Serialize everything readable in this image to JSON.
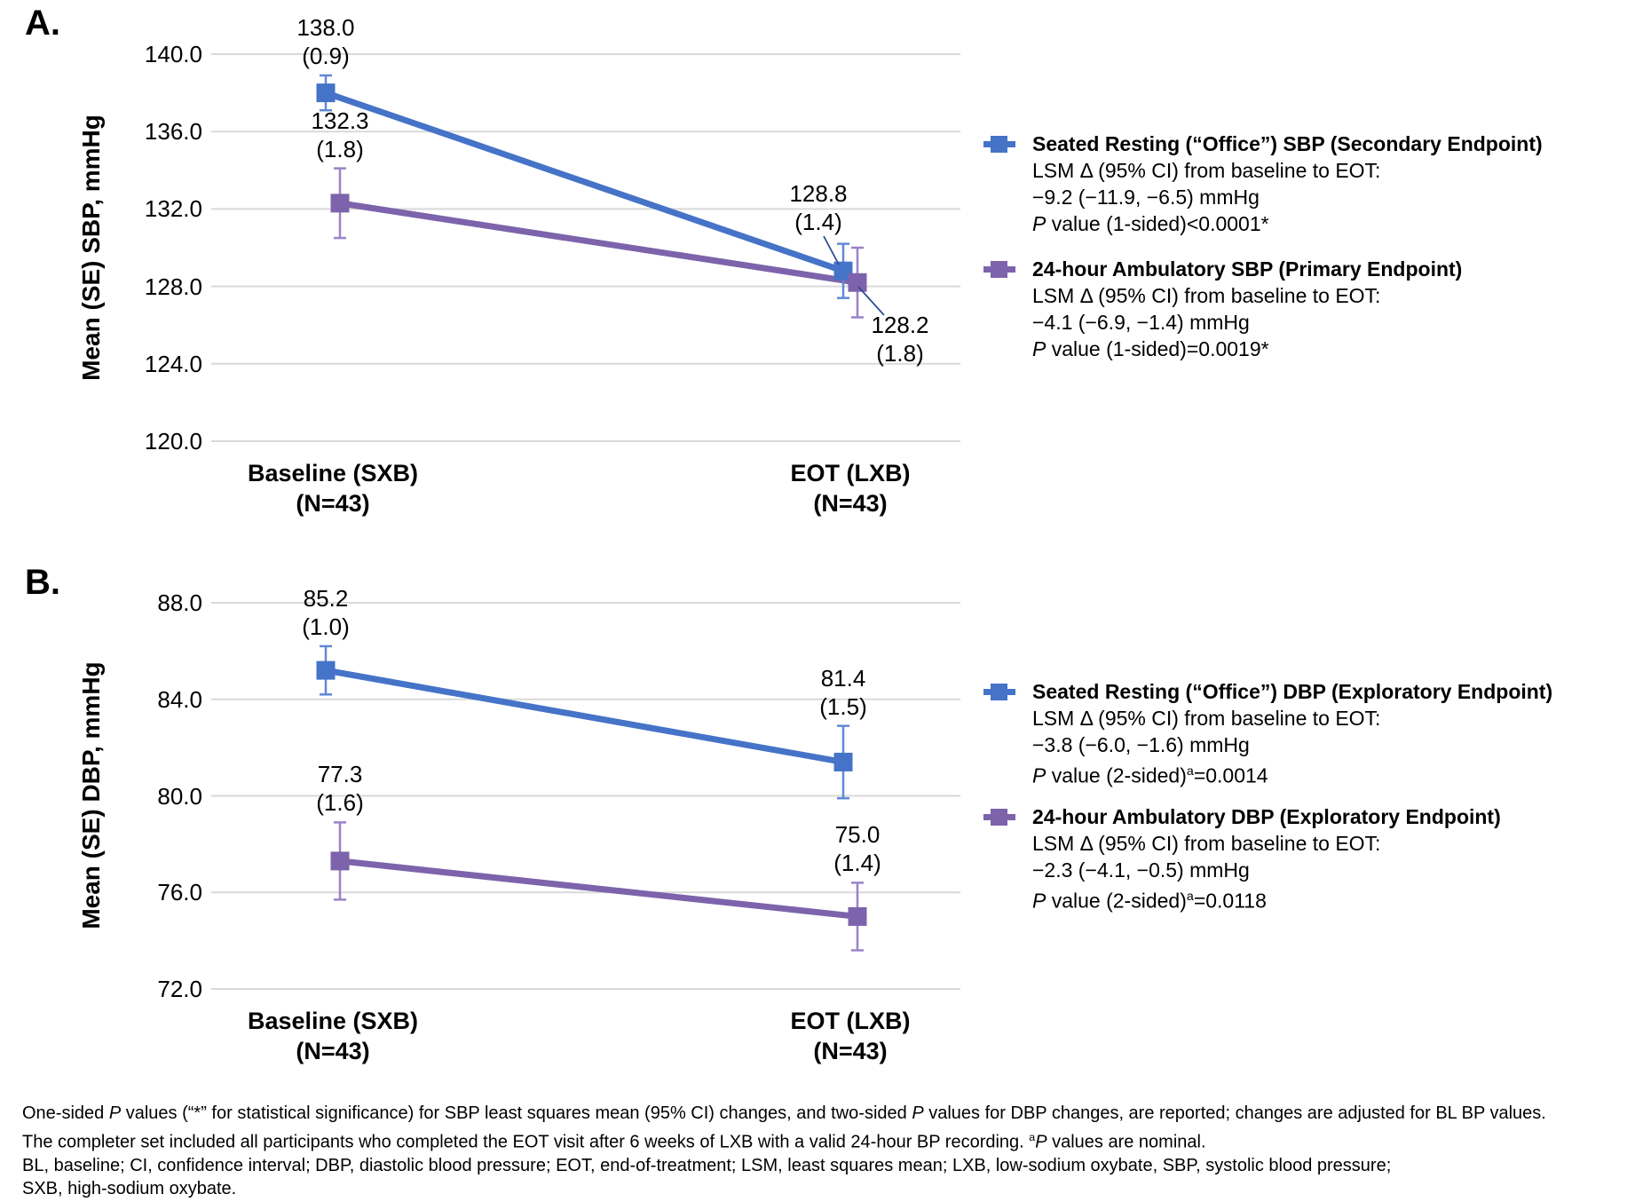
{
  "chart_data": [
    {
      "id": "A",
      "panel_label": "A.",
      "type": "line",
      "ylabel": "Mean (SE) SBP, mmHg",
      "yaxis": {
        "min": 120,
        "max": 140,
        "tick_step": 4,
        "tick_labels": [
          "140.0",
          "136.0",
          "132.0",
          "128.0",
          "124.0",
          "120.0"
        ]
      },
      "categories": [
        {
          "line1": "Baseline (SXB)",
          "line2": "(N=43)"
        },
        {
          "line1": "EOT (LXB)",
          "line2": "(N=43)"
        }
      ],
      "series": [
        {
          "name": "Seated Resting (“Office”) SBP",
          "color": "#4573C8",
          "error_color": "#6189D6",
          "values": [
            138.0,
            128.8
          ],
          "se": [
            0.9,
            1.4
          ],
          "point_labels": [
            {
              "value": "138.0",
              "se": "(0.9)",
              "placement": "above"
            },
            {
              "value": "128.8",
              "se": "(1.4)",
              "placement": "leader"
            }
          ]
        },
        {
          "name": "24-hour Ambulatory SBP",
          "color": "#7D63AB",
          "error_color": "#9A82C8",
          "values": [
            132.3,
            128.2
          ],
          "se": [
            1.8,
            1.8
          ],
          "point_labels": [
            {
              "value": "132.3",
              "se": "(1.8)",
              "placement": "above"
            },
            {
              "value": "128.2",
              "se": "(1.8)",
              "placement": "leader"
            }
          ]
        }
      ],
      "legend": [
        {
          "title": "Seated Resting (“Office”) SBP (Secondary Endpoint)",
          "lines": [
            "LSM Δ (95% CI) from baseline to EOT:",
            "−9.2 (−11.9, −6.5) mmHg",
            "{i}P{/i} value (1-sided)<0.0001*"
          ]
        },
        {
          "title": "24-hour Ambulatory SBP (Primary Endpoint)",
          "lines": [
            "LSM Δ (95% CI) from baseline to EOT:",
            "−4.1 (−6.9, −1.4) mmHg",
            "{i}P{/i} value (1-sided)=0.0019*"
          ]
        }
      ]
    },
    {
      "id": "B",
      "panel_label": "B.",
      "type": "line",
      "ylabel": "Mean (SE) DBP, mmHg",
      "yaxis": {
        "min": 72,
        "max": 88,
        "tick_step": 4,
        "tick_labels": [
          "88.0",
          "84.0",
          "80.0",
          "76.0",
          "72.0"
        ]
      },
      "categories": [
        {
          "line1": "Baseline (SXB)",
          "line2": "(N=43)"
        },
        {
          "line1": "EOT (LXB)",
          "line2": "(N=43)"
        }
      ],
      "series": [
        {
          "name": "Seated Resting (“Office”) DBP",
          "color": "#4573C8",
          "error_color": "#6189D6",
          "values": [
            85.2,
            81.4
          ],
          "se": [
            1.0,
            1.5
          ],
          "point_labels": [
            {
              "value": "85.2",
              "se": "(1.0)",
              "placement": "above"
            },
            {
              "value": "81.4",
              "se": "(1.5)",
              "placement": "above"
            }
          ]
        },
        {
          "name": "24-hour Ambulatory DBP",
          "color": "#7D63AB",
          "error_color": "#9A82C8",
          "values": [
            77.3,
            75.0
          ],
          "se": [
            1.6,
            1.4
          ],
          "point_labels": [
            {
              "value": "77.3",
              "se": "(1.6)",
              "placement": "above"
            },
            {
              "value": "75.0",
              "se": "(1.4)",
              "placement": "above"
            }
          ]
        }
      ],
      "legend": [
        {
          "title": "Seated Resting (“Office”) DBP (Exploratory Endpoint)",
          "lines": [
            "LSM Δ (95% CI) from baseline to EOT:",
            "−3.8 (−6.0, −1.6) mmHg",
            "{i}P{/i} value (2-sided){sup}a{/sup}=0.0014"
          ]
        },
        {
          "title": "24-hour Ambulatory DBP (Exploratory Endpoint)",
          "lines": [
            "LSM Δ (95% CI) from baseline to EOT:",
            "−2.3 (−4.1, −0.5) mmHg",
            "{i}P{/i} value (2-sided){sup}a{/sup}=0.0118"
          ]
        }
      ]
    }
  ],
  "footnote": [
    "One-sided {i}P{/i} values (“*” for statistical significance) for SBP least squares mean (95% CI) changes, and two-sided {i}P{/i} values for DBP changes, are reported; changes are adjusted for BL BP values.",
    "The completer set included all participants who completed the EOT visit after 6 weeks of LXB with a valid 24-hour BP recording. {sup}a{/sup}{i}P{/i} values are nominal.",
    "BL, baseline; CI, confidence interval; DBP, diastolic blood pressure; EOT, end-of-treatment; LSM, least squares mean; LXB, low-sodium oxybate, SBP, systolic blood pressure;",
    "SXB, high-sodium oxybate."
  ]
}
